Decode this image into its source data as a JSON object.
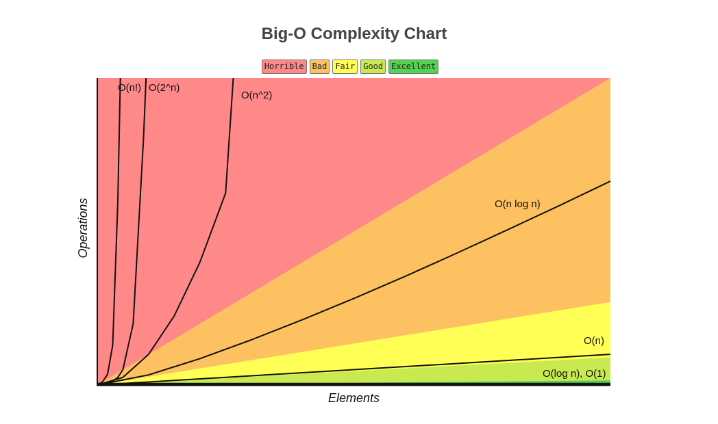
{
  "chart_data": {
    "type": "line",
    "title": "Big-O Complexity Chart",
    "xlabel": "Elements",
    "ylabel": "Operations",
    "xlim": [
      0,
      100
    ],
    "ylim": [
      0,
      1000
    ],
    "legend": {
      "placement": "top-center",
      "items": [
        {
          "label": "Horrible",
          "color": "#ff8989"
        },
        {
          "label": "Bad",
          "color": "#fdc162"
        },
        {
          "label": "Fair",
          "color": "#ffff55"
        },
        {
          "label": "Good",
          "color": "#c8ea50"
        },
        {
          "label": "Excellent",
          "color": "#53d153"
        }
      ]
    },
    "regions": [
      {
        "band": "Excellent",
        "color": "#53d153",
        "boundary": [
          [
            0,
            0
          ],
          [
            100,
            15
          ]
        ]
      },
      {
        "band": "Good",
        "color": "#c8ea50",
        "boundary": [
          [
            0,
            0
          ],
          [
            100,
            90
          ]
        ]
      },
      {
        "band": "Fair",
        "color": "#ffff55",
        "boundary": [
          [
            0,
            0
          ],
          [
            100,
            270
          ]
        ]
      },
      {
        "band": "Bad",
        "color": "#fdc162",
        "boundary": [
          [
            0,
            0
          ],
          [
            100,
            1000
          ]
        ]
      },
      {
        "band": "Horrible",
        "color": "#ff8989",
        "boundary": [
          [
            0,
            0
          ],
          [
            100,
            1000
          ]
        ]
      }
    ],
    "series": [
      {
        "name": "O(n!)",
        "x": [
          0,
          1,
          2,
          3,
          4,
          4.5
        ],
        "y": [
          0,
          10,
          35,
          130,
          600,
          1000
        ]
      },
      {
        "name": "O(2^n)",
        "x": [
          0,
          2,
          3,
          4,
          5,
          7,
          9,
          9.5
        ],
        "y": [
          0,
          5,
          12,
          25,
          50,
          200,
          800,
          1000
        ]
      },
      {
        "name": "O(n^2)",
        "x": [
          0,
          5,
          10,
          15,
          20,
          25,
          26.5
        ],
        "y": [
          0,
          25,
          100,
          225,
          400,
          625,
          1000
        ]
      },
      {
        "name": "O(n log n)",
        "x": [
          0,
          10,
          20,
          30,
          40,
          50,
          60,
          70,
          80,
          90,
          100
        ],
        "y": [
          0,
          33,
          86,
          147,
          213,
          282,
          354,
          429,
          506,
          584,
          664
        ]
      },
      {
        "name": "O(n)",
        "x": [
          0,
          100
        ],
        "y": [
          0,
          100
        ]
      },
      {
        "name": "O(log n), O(1)",
        "x": [
          0,
          100
        ],
        "y": [
          5,
          5
        ]
      }
    ]
  }
}
